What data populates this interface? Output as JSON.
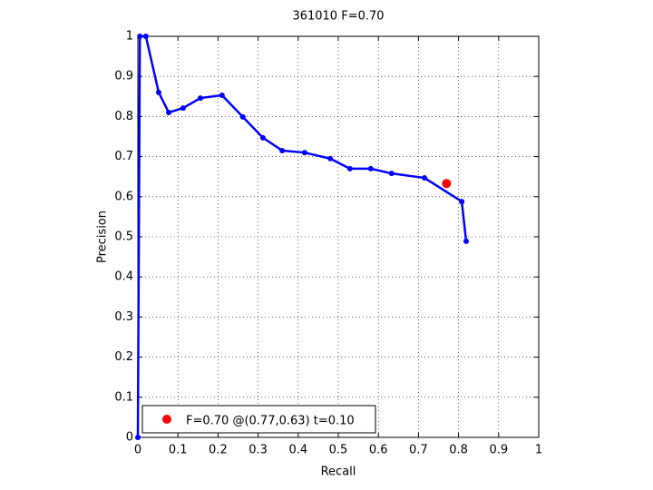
{
  "chart_data": {
    "type": "line",
    "title": "361010 F=0.70",
    "x_label": "Recall",
    "y_label": "Precision",
    "xlim": [
      0,
      1
    ],
    "ylim": [
      0,
      1
    ],
    "xticks": [
      0,
      0.1,
      0.2,
      0.3,
      0.4,
      0.5,
      0.6,
      0.7,
      0.8,
      0.9,
      1
    ],
    "yticks": [
      0,
      0.1,
      0.2,
      0.3,
      0.4,
      0.5,
      0.6,
      0.7,
      0.8,
      0.9,
      1
    ],
    "grid": true,
    "legend": "lower left",
    "series": [
      {
        "color": "#0000ff",
        "x": [
          0,
          0.005,
          0.02,
          0.052,
          0.077,
          0.113,
          0.156,
          0.21,
          0.262,
          0.312,
          0.36,
          0.416,
          0.48,
          0.529,
          0.581,
          0.633,
          0.715,
          0.808,
          0.819
        ],
        "values": [
          0,
          1,
          1,
          0.86,
          0.81,
          0.821,
          0.846,
          0.853,
          0.799,
          0.747,
          0.715,
          0.71,
          0.695,
          0.67,
          0.67,
          0.658,
          0.647,
          0.588,
          0.489
        ]
      },
      {
        "name": "F=0.70 @(0.77,0.63) t=0.10",
        "color": "#ff0000",
        "marker_only": true,
        "x": [
          0.77
        ],
        "values": [
          0.633
        ]
      }
    ]
  }
}
